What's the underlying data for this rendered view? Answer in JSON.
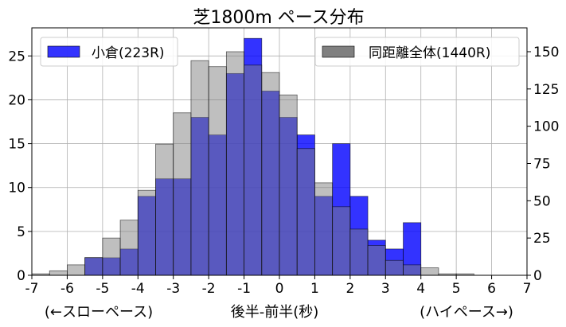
{
  "chart_data": {
    "type": "bar",
    "title": "芝1800m ペース分布",
    "xlabel": "後半-前半(秒)",
    "xlabel_left": "(←スローペース)",
    "xlabel_right": "(ハイペース→)",
    "xlim": [
      -7,
      7
    ],
    "xticks": [
      "-7",
      "-6",
      "-5",
      "-4",
      "-3",
      "-2",
      "-1",
      "0",
      "1",
      "2",
      "3",
      "4",
      "5",
      "6",
      "7"
    ],
    "ylim_left": [
      0,
      28.2
    ],
    "yticks_left": [
      "0",
      "5",
      "10",
      "15",
      "20",
      "25"
    ],
    "ylim_right": [
      0,
      166
    ],
    "yticks_right": [
      "0",
      "25",
      "50",
      "75",
      "100",
      "125",
      "150"
    ],
    "grid": true,
    "bin_edges": [
      -7.0,
      -6.5,
      -6.0,
      -5.5,
      -5.0,
      -4.5,
      -4.0,
      -3.5,
      -3.0,
      -2.5,
      -2.0,
      -1.5,
      -1.0,
      -0.5,
      0.0,
      0.5,
      1.0,
      1.5,
      2.0,
      2.5,
      3.0,
      3.5,
      4.0,
      4.5,
      5.0,
      5.5,
      6.0,
      6.5,
      7.0
    ],
    "series": [
      {
        "name": "小倉(223R)",
        "axis": "left",
        "color": "#0000ff",
        "values": [
          0,
          0,
          0,
          2,
          2,
          3,
          9,
          11,
          11,
          18,
          16,
          23,
          27,
          21,
          18,
          16,
          9,
          15,
          9,
          4,
          3,
          6,
          0,
          0,
          0,
          0,
          0,
          0
        ]
      },
      {
        "name": "同距離全体(1440R)",
        "axis": "right",
        "color": "#808080",
        "values": [
          1,
          3,
          7,
          12,
          25,
          37,
          57,
          88,
          109,
          144,
          140,
          150,
          141,
          136,
          121,
          85,
          62,
          46,
          31,
          20,
          10,
          7,
          5,
          1,
          1,
          0,
          0,
          0
        ]
      }
    ]
  }
}
